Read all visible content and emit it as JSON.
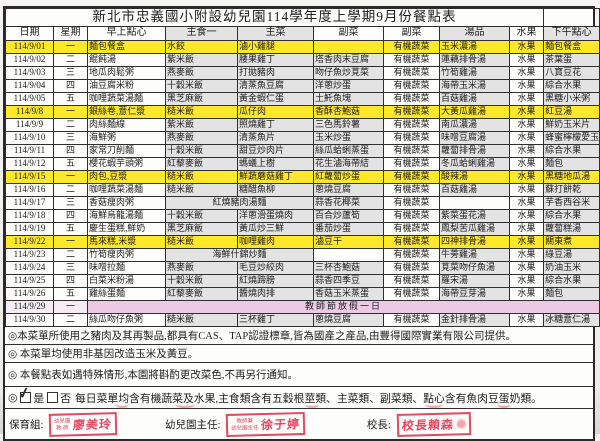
{
  "title": "新北市忠義國小附設幼兒園114學年度上學期9月份餐點表",
  "table": {
    "columns": [
      "日期",
      "星期",
      "早上點心",
      "主食一",
      "主菜",
      "副菜",
      "副菜",
      "湯品",
      "水果",
      "下午點心"
    ],
    "rows": [
      {
        "hl": "yellow",
        "cells": [
          [
            "114/9/01"
          ],
          [
            "一"
          ],
          [
            "麵包餐盒"
          ],
          [
            "水餃"
          ],
          [
            "滷小雞腿"
          ],
          [
            ""
          ],
          [
            "有機蔬菜"
          ],
          [
            "玉米濃湯"
          ],
          [
            "水果"
          ],
          [
            "麵包餐盒"
          ]
        ]
      },
      {
        "cells": [
          [
            "114/9/02"
          ],
          [
            "二"
          ],
          [
            "餛飩湯"
          ],
          [
            "紫米飯"
          ],
          [
            "腰果雞丁"
          ],
          [
            "塔香肉末豆腐"
          ],
          [
            "有機蔬菜"
          ],
          [
            "蓮藕排骨湯"
          ],
          [
            "水果"
          ],
          [
            "茶葉蛋"
          ]
        ]
      },
      {
        "cells": [
          [
            "114/9/03"
          ],
          [
            "三"
          ],
          [
            "地瓜肉鬆粥"
          ],
          [
            "燕麥飯"
          ],
          [
            "打拋豬肉"
          ],
          [
            "吻仔魚炒莧菜"
          ],
          [
            "有機蔬菜"
          ],
          [
            "竹筍雞湯"
          ],
          [
            "水果"
          ],
          [
            "八寶豆花"
          ]
        ]
      },
      {
        "cells": [
          [
            "114/9/04"
          ],
          [
            "四"
          ],
          [
            "油豆腐米粉"
          ],
          [
            "十穀米飯"
          ],
          [
            "清蒸魚豆腐"
          ],
          [
            "洋蔥炒蛋"
          ],
          [
            "有機蔬菜"
          ],
          [
            "海帶玉米湯"
          ],
          [
            "水果"
          ],
          [
            "綜合水果"
          ]
        ]
      },
      {
        "cells": [
          [
            "114/9/05"
          ],
          [
            "五"
          ],
          [
            "咖哩蔬菜湯麵"
          ],
          [
            "黑芝麻飯"
          ],
          [
            "黃金蝦仁蛋"
          ],
          [
            "土魠魚塊"
          ],
          [
            "有機蔬菜"
          ],
          [
            "百菇雞湯"
          ],
          [
            "水果"
          ],
          [
            "黑糖小米粥"
          ]
        ]
      },
      {
        "hl": "yellow",
        "cells": [
          [
            "114/9/8"
          ],
          [
            "一"
          ],
          [
            "銀絲卷,薏仁漿"
          ],
          [
            "糙米飯"
          ],
          [
            "瓜仔肉"
          ],
          [
            "香酥杏鮑菇"
          ],
          [
            "有機蔬菜"
          ],
          [
            "大黃瓜雞湯"
          ],
          [
            "水果"
          ],
          [
            "紅豆湯"
          ]
        ]
      },
      {
        "cells": [
          [
            "114/9/9"
          ],
          [
            "二"
          ],
          [
            "肉絲麵線"
          ],
          [
            "紫米飯"
          ],
          [
            "照燒雞丁"
          ],
          [
            "三色馬鈴薯"
          ],
          [
            "有機蔬菜"
          ],
          [
            "南瓜濃湯"
          ],
          [
            "水果"
          ],
          [
            "鮮奶玉米片"
          ]
        ]
      },
      {
        "cells": [
          [
            "114/9/10"
          ],
          [
            "三"
          ],
          [
            "海鮮粥"
          ],
          [
            "燕麥飯"
          ],
          [
            "清蒸魚片"
          ],
          [
            "玉米炒蛋"
          ],
          [
            "有機蔬菜"
          ],
          [
            "味噌豆腐湯"
          ],
          [
            "水果"
          ],
          [
            "蜂蜜檸檬愛玉"
          ]
        ]
      },
      {
        "cells": [
          [
            "114/9/11"
          ],
          [
            "四"
          ],
          [
            "家常刀削麵"
          ],
          [
            "十穀米飯"
          ],
          [
            "甜豆炒肉片"
          ],
          [
            "絲瓜蛤蜊蒸蛋"
          ],
          [
            "有機蔬菜"
          ],
          [
            "蘿蔔排骨湯"
          ],
          [
            "水果"
          ],
          [
            "綜合水果"
          ]
        ]
      },
      {
        "cells": [
          [
            "114/9/12"
          ],
          [
            "五"
          ],
          [
            "櫻花蝦芋頭粥"
          ],
          [
            "紅藜麥飯"
          ],
          [
            "螞蟻上樹"
          ],
          [
            "花生滷海帶結"
          ],
          [
            "有機蔬菜"
          ],
          [
            "冬瓜蛤蜊雞湯"
          ],
          [
            "水果"
          ],
          [
            "麵包"
          ]
        ]
      },
      {
        "hl": "yellow",
        "cells": [
          [
            "114/9/15"
          ],
          [
            "一"
          ],
          [
            "肉包,豆漿"
          ],
          [
            "糙米飯"
          ],
          [
            "鮮蔬蘑菇雞丁"
          ],
          [
            "紅蘿蔔炒蛋"
          ],
          [
            "有機蔬菜"
          ],
          [
            "酸辣湯"
          ],
          [
            "水果"
          ],
          [
            "黑糖地瓜湯"
          ]
        ]
      },
      {
        "cells": [
          [
            "114/9/16"
          ],
          [
            "二"
          ],
          [
            "咖哩蔬菜湯麵"
          ],
          [
            "糙米飯"
          ],
          [
            "糖醋魚柳"
          ],
          [
            "蔥燒豆腐"
          ],
          [
            "有機蔬菜"
          ],
          [
            "百菇雞湯"
          ],
          [
            "水果"
          ],
          [
            "蘇打餅乾"
          ]
        ]
      },
      {
        "cells": [
          [
            "114/9/17"
          ],
          [
            "三"
          ],
          [
            "香菇瘦肉粥"
          ],
          [
            "紅燒豬肉湯麵",
            2
          ],
          [
            "蒜香花椰菜"
          ],
          [
            "有機蔬菜"
          ],
          [
            ""
          ],
          [
            "水果"
          ],
          [
            "芋香西谷米"
          ]
        ]
      },
      {
        "cells": [
          [
            "114/9/18"
          ],
          [
            "四"
          ],
          [
            "海鮮烏龍湯麵"
          ],
          [
            "十穀米飯"
          ],
          [
            "洋蔥滑蛋燒肉"
          ],
          [
            "百合炒蘆筍"
          ],
          [
            "有機蔬菜"
          ],
          [
            "紫菜蛋花湯"
          ],
          [
            "水果"
          ],
          [
            "綜合水果"
          ]
        ]
      },
      {
        "cells": [
          [
            "114/9/19"
          ],
          [
            "五"
          ],
          [
            "慶生蛋糕,鮮奶"
          ],
          [
            "黑芝麻飯"
          ],
          [
            "黃瓜炒三鮮"
          ],
          [
            "番茄炒蛋"
          ],
          [
            "有機蔬菜"
          ],
          [
            "鳳梨苦瓜雞湯"
          ],
          [
            "水果"
          ],
          [
            "蘿蔔糕湯"
          ]
        ]
      },
      {
        "hl": "yellow",
        "cells": [
          [
            "114/9/22"
          ],
          [
            "一"
          ],
          [
            "馬來糕,米漿"
          ],
          [
            "糙米飯"
          ],
          [
            "咖哩雞肉"
          ],
          [
            "滷豆干"
          ],
          [
            "有機蔬菜"
          ],
          [
            "四神排骨湯"
          ],
          [
            "水果"
          ],
          [
            "關東煮"
          ]
        ]
      },
      {
        "cells": [
          [
            "114/9/23"
          ],
          [
            "二"
          ],
          [
            "竹筍瘦肉粥"
          ],
          [
            "海鮮什錦炒麵",
            2
          ],
          [
            ""
          ],
          [
            "有機蔬菜"
          ],
          [
            "牛蒡雞湯"
          ],
          [
            "水果"
          ],
          [
            "綠豆湯"
          ]
        ]
      },
      {
        "cells": [
          [
            "114/9/24"
          ],
          [
            "三"
          ],
          [
            "味噌拉麵"
          ],
          [
            "燕麥飯"
          ],
          [
            "毛豆炒絞肉"
          ],
          [
            "三杯杏鮑菇"
          ],
          [
            "有機蔬菜"
          ],
          [
            "莧菜吻仔魚湯"
          ],
          [
            "水果"
          ],
          [
            "奶油玉米"
          ]
        ]
      },
      {
        "cells": [
          [
            "114/9/25"
          ],
          [
            "四"
          ],
          [
            "白菜米粉湯"
          ],
          [
            "十穀米飯"
          ],
          [
            "紅燒蹄膀"
          ],
          [
            "蒜香四季豆"
          ],
          [
            "有機蔬菜"
          ],
          [
            "羅宋湯"
          ],
          [
            "水果"
          ],
          [
            "綜合水果"
          ]
        ]
      },
      {
        "cells": [
          [
            "114/9/26"
          ],
          [
            "五"
          ],
          [
            "雞絲蛋麵"
          ],
          [
            "紅藜麥飯"
          ],
          [
            "醬燒肉排"
          ],
          [
            "香菇玉米蒸蛋"
          ],
          [
            "有機蔬菜"
          ],
          [
            "海帶豆芽湯"
          ],
          [
            "水果"
          ],
          [
            "麵包"
          ]
        ]
      },
      {
        "hl": "holiday",
        "cells": [
          [
            "114/9/29"
          ],
          [
            "一"
          ],
          [
            "教師節放假一日",
            8
          ]
        ]
      },
      {
        "cells": [
          [
            "114/9/30"
          ],
          [
            "二"
          ],
          [
            "絲瓜吻仔魚粥"
          ],
          [
            "糙米飯"
          ],
          [
            "三杯雞丁"
          ],
          [
            "蔥燒豆腐"
          ],
          [
            "有機蔬菜"
          ],
          [
            "金針排骨湯"
          ],
          [
            "水果"
          ],
          [
            "冰糖薏仁湯"
          ]
        ]
      }
    ]
  },
  "footnotes": [
    "◎本菜單所使用之豬肉及其再製品,都具有CAS、TAP認證標章,皆為國產之產品,由豐得國際實業有限公司提供。",
    "◎ 本菜單均使用非基因改造玉米及黃豆。",
    "◎ 本餐點表如遇特殊情形,本園將斟酌更改菜色,不再另行通知。"
  ],
  "certify": {
    "bullet": "◎",
    "yes_label": "是",
    "no_label": "否",
    "check": "✓",
    "text": "每日菜單均含有機蔬菜及水果,主食類含有五穀根莖類、主菜類、副菜類、點心含有魚肉豆蛋奶類。"
  },
  "signatures": {
    "caretaker_label": "保育組:",
    "caretaker_stamp_title": "幼兒園\n教 師",
    "caretaker_stamp_name": "廖美玲",
    "director_label": "幼兒園主任:",
    "director_stamp_title": "教師兼\n幼兒園主任",
    "director_stamp_name": "徐于婷",
    "principal_label": "校長:",
    "principal_stamp_name": "校長賴森"
  },
  "colors": {
    "highlight_yellow": "#ffe72a",
    "holiday_pink": "#eec9e4",
    "shaded_gray": "#e3e3e3",
    "stamp_red": "#e5485f"
  }
}
